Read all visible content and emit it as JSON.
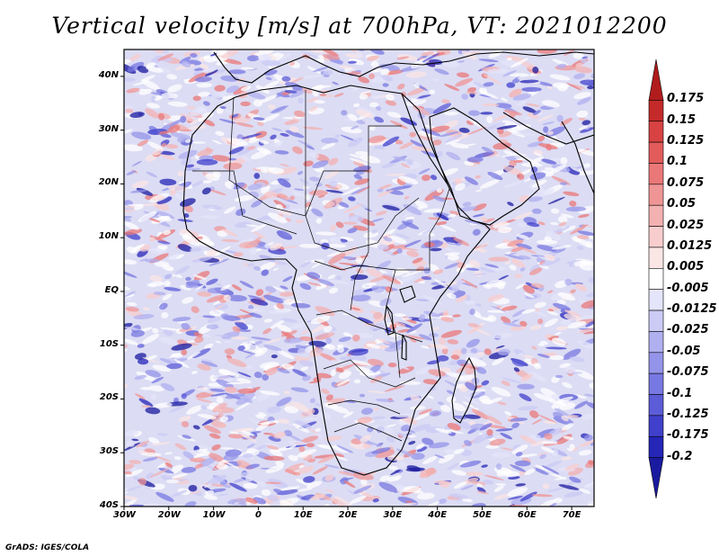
{
  "title": "Vertical velocity [m/s] at 700hPa, VT: 2021012200",
  "footer": "GrADS: IGES/COLA",
  "map": {
    "lon_range": [
      -30,
      75
    ],
    "lat_range": [
      -40,
      45
    ],
    "lat_ticks": [
      {
        "value": 40,
        "label": "40N"
      },
      {
        "value": 30,
        "label": "30N"
      },
      {
        "value": 20,
        "label": "20N"
      },
      {
        "value": 10,
        "label": "10N"
      },
      {
        "value": 0,
        "label": "EQ"
      },
      {
        "value": -10,
        "label": "10S"
      },
      {
        "value": -20,
        "label": "20S"
      },
      {
        "value": -30,
        "label": "30S"
      },
      {
        "value": -40,
        "label": "40S"
      }
    ],
    "lon_ticks": [
      {
        "value": -30,
        "label": "30W"
      },
      {
        "value": -20,
        "label": "20W"
      },
      {
        "value": -10,
        "label": "10W"
      },
      {
        "value": 0,
        "label": "0"
      },
      {
        "value": 10,
        "label": "10E"
      },
      {
        "value": 20,
        "label": "20E"
      },
      {
        "value": 30,
        "label": "30E"
      },
      {
        "value": 40,
        "label": "40E"
      },
      {
        "value": 50,
        "label": "50E"
      },
      {
        "value": 60,
        "label": "60E"
      },
      {
        "value": 70,
        "label": "70E"
      }
    ]
  },
  "colorbar": {
    "levels": [
      "0.175",
      "0.15",
      "0.125",
      "0.1",
      "0.075",
      "0.05",
      "0.025",
      "0.0125",
      "0.005",
      "-0.005",
      "-0.0125",
      "-0.025",
      "-0.05",
      "-0.075",
      "-0.1",
      "-0.125",
      "-0.175",
      "-0.2"
    ],
    "colors": [
      "#b11c1c",
      "#c52a2a",
      "#d84242",
      "#e35c5c",
      "#ea7878",
      "#ef9595",
      "#f3b1b1",
      "#f8cdcd",
      "#fbe6e6",
      "#ffffff",
      "#e4e4fb",
      "#cbcbf6",
      "#b0b0f0",
      "#9494ea",
      "#7878e2",
      "#5c5cd8",
      "#4040cc",
      "#2525b8",
      "#1a1aa0"
    ]
  },
  "colors": {
    "positive": "#d83a3a",
    "negative": "#4a4ad6",
    "coast": "#000000"
  }
}
